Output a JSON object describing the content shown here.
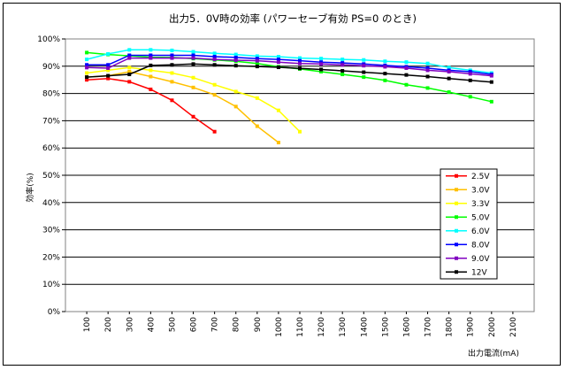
{
  "chart_data": {
    "type": "line",
    "title": "出力5．0V時の効率 (パワーセーブ有効 PS=0 のとき)",
    "xlabel": "出力電流(mA)",
    "ylabel": "効率(%)",
    "x_ticks": [
      "100",
      "200",
      "300",
      "400",
      "500",
      "600",
      "700",
      "800",
      "900",
      "1000",
      "1100",
      "1200",
      "1300",
      "1400",
      "1500",
      "1600",
      "1700",
      "1800",
      "1900",
      "2000",
      "2100"
    ],
    "y_ticks": [
      "0%",
      "10%",
      "20%",
      "30%",
      "40%",
      "50%",
      "60%",
      "70%",
      "80%",
      "90%",
      "100%"
    ],
    "ylim": [
      0,
      100
    ],
    "grid": "horizontal",
    "legend_position": "right-bottom",
    "series": [
      {
        "name": "2.5V",
        "color": "#ff0000",
        "x": [
          100,
          200,
          300,
          400,
          500,
          600,
          700
        ],
        "values": [
          85,
          85.5,
          84.3,
          81.5,
          77.5,
          71.5,
          66
        ]
      },
      {
        "name": "3.0V",
        "color": "#ffc000",
        "x": [
          100,
          200,
          300,
          400,
          500,
          600,
          700,
          800,
          900,
          1000
        ],
        "values": [
          86,
          86.5,
          88,
          86.2,
          84.3,
          82.2,
          79.5,
          75.2,
          68,
          62
        ]
      },
      {
        "name": "3.3V",
        "color": "#ffff00",
        "x": [
          100,
          200,
          300,
          400,
          500,
          600,
          700,
          800,
          900,
          1000,
          1100
        ],
        "values": [
          87.5,
          88.5,
          89.5,
          88.5,
          87.5,
          85.8,
          83.2,
          80.7,
          78.3,
          73.8,
          66
        ]
      },
      {
        "name": "5.0V",
        "color": "#00ff00",
        "x": [
          100,
          200,
          300,
          400,
          500,
          600,
          700,
          800,
          900,
          1000,
          1100,
          1200,
          1300,
          1400,
          1500,
          1600,
          1700,
          1800,
          1900,
          2000
        ],
        "values": [
          95,
          94.3,
          93.8,
          93.3,
          93.2,
          92.8,
          92.3,
          91.8,
          91,
          89.8,
          89,
          88,
          87,
          86,
          84.8,
          83.2,
          82,
          80.5,
          78.8,
          77
        ]
      },
      {
        "name": "6.0V",
        "color": "#00ffff",
        "x": [
          100,
          200,
          300,
          400,
          500,
          600,
          700,
          800,
          900,
          1000,
          1100,
          1200,
          1300,
          1400,
          1500,
          1600,
          1700,
          1800,
          1900,
          2000
        ],
        "values": [
          92.5,
          94.5,
          96,
          96,
          95.8,
          95.3,
          94.7,
          94.3,
          93.7,
          93.5,
          93,
          92.8,
          92.5,
          92.3,
          91.8,
          91.5,
          91,
          89.5,
          88.5,
          87.5
        ]
      },
      {
        "name": "8.0V",
        "color": "#0000ff",
        "x": [
          100,
          200,
          300,
          400,
          500,
          600,
          700,
          800,
          900,
          1000,
          1100,
          1200,
          1300,
          1400,
          1500,
          1600,
          1700,
          1800,
          1900,
          2000
        ],
        "values": [
          90.5,
          90.5,
          94,
          94,
          94,
          94,
          93.5,
          93.2,
          92.8,
          92.5,
          92,
          91.5,
          91.2,
          90.8,
          90.3,
          89.8,
          89.3,
          88.5,
          88,
          87
        ]
      },
      {
        "name": "9.0V",
        "color": "#8000c0",
        "x": [
          100,
          200,
          300,
          400,
          500,
          600,
          700,
          800,
          900,
          1000,
          1100,
          1200,
          1300,
          1400,
          1500,
          1600,
          1700,
          1800,
          1900,
          2000
        ],
        "values": [
          89.5,
          89.3,
          93,
          93,
          93,
          93,
          92.5,
          92.2,
          92,
          91.5,
          91,
          90.8,
          90.5,
          90.2,
          89.8,
          89.3,
          88.5,
          88,
          87.2,
          86.5
        ]
      },
      {
        "name": "12V",
        "color": "#000000",
        "x": [
          100,
          200,
          300,
          400,
          500,
          600,
          700,
          800,
          900,
          1000,
          1100,
          1200,
          1300,
          1400,
          1500,
          1600,
          1700,
          1800,
          1900,
          2000
        ],
        "values": [
          86,
          86.5,
          87,
          90.3,
          90.5,
          90.8,
          90.5,
          90.2,
          89.9,
          89.6,
          89.2,
          88.8,
          88.3,
          87.8,
          87.3,
          86.8,
          86.2,
          85.5,
          84.8,
          84.2
        ]
      }
    ]
  }
}
